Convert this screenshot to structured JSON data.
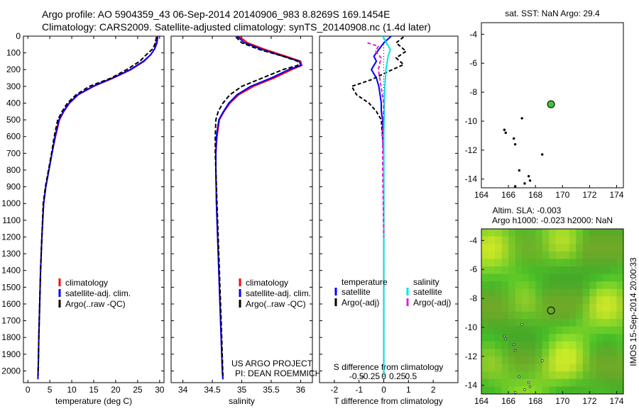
{
  "header": {
    "line1": "Argo profile: AO 5904359_43 06-Sep-2014 20140906_983 8.8269S 169.1454E",
    "line2": "Climatology: CARS2009. Satellite-adjusted climatology: synTS_20140908.nc (1.4d later)"
  },
  "colors": {
    "climatology": "#ff0000",
    "satellite": "#0000ff",
    "argo": "#000000",
    "satellite_salinity": "#00e5e5",
    "argo_salinity": "#e020e0",
    "marker": "#40c040",
    "sla_green": "#30c830"
  },
  "chart_data": [
    {
      "type": "line",
      "id": "temperature",
      "xlabel": "temperature (deg C)",
      "xlim": [
        -1,
        31
      ],
      "xticks": [
        0,
        5,
        10,
        15,
        20,
        25,
        30
      ],
      "ylim": [
        2070,
        0
      ],
      "yticks": [
        0,
        100,
        200,
        300,
        400,
        500,
        600,
        700,
        800,
        900,
        1000,
        1100,
        1200,
        1300,
        1400,
        1500,
        1600,
        1700,
        1800,
        1900,
        2000
      ],
      "legend": [
        "climatology",
        "satellite-adj. clim.",
        "Argo(..raw -QC)"
      ],
      "series": [
        {
          "name": "climatology",
          "color": "#ff0000",
          "x": [
            29.3,
            29.2,
            28.9,
            28.0,
            26.5,
            23.5,
            19.5,
            15.0,
            11.5,
            9.5,
            8.2,
            7.2,
            6.3,
            5.5,
            4.8,
            4.1,
            3.6,
            3.2,
            2.9,
            2.7,
            2.5,
            2.4,
            2.3
          ],
          "y": [
            0,
            40,
            75,
            110,
            150,
            200,
            250,
            300,
            350,
            400,
            450,
            500,
            600,
            700,
            800,
            900,
            1000,
            1200,
            1400,
            1600,
            1800,
            1950,
            2050
          ]
        },
        {
          "name": "satellite-adj. clim.",
          "color": "#0000ff",
          "x": [
            29.6,
            29.4,
            28.9,
            28.0,
            26.3,
            23.3,
            19.3,
            14.8,
            11.4,
            9.4,
            8.1,
            7.1,
            6.2,
            5.5,
            4.8,
            4.1,
            3.6,
            3.2,
            2.9,
            2.7,
            2.5,
            2.4,
            2.3
          ],
          "y": [
            0,
            40,
            75,
            110,
            150,
            200,
            250,
            300,
            350,
            400,
            450,
            500,
            600,
            700,
            800,
            900,
            1000,
            1200,
            1400,
            1600,
            1800,
            1950,
            2050
          ]
        },
        {
          "name": "Argo(..raw -QC)",
          "color": "#000000",
          "dashed": true,
          "x": [
            29.3,
            29.0,
            28.5,
            27.0,
            25.5,
            22.5,
            19.0,
            14.0,
            11.0,
            9.0,
            7.8,
            6.8,
            6.0,
            5.4,
            4.7,
            4.0,
            3.5,
            3.2,
            2.9,
            2.7,
            2.5,
            2.4,
            2.3
          ],
          "y": [
            5,
            40,
            75,
            110,
            150,
            200,
            250,
            300,
            350,
            400,
            450,
            500,
            600,
            700,
            800,
            900,
            1000,
            1200,
            1400,
            1600,
            1800,
            1950,
            2030
          ]
        }
      ]
    },
    {
      "type": "line",
      "id": "salinity",
      "xlabel": "salinity",
      "xlim": [
        33.8,
        36.2
      ],
      "xticks": [
        34,
        34.5,
        35,
        35.5,
        36
      ],
      "ylim": [
        2070,
        0
      ],
      "legend": [
        "climatology",
        "satellite-adj. clim.",
        "Argo(..raw -QC)"
      ],
      "annotation": [
        "US ARGO PROJECT",
        "PI: DEAN ROEMMICH"
      ],
      "series": [
        {
          "name": "climatology",
          "color": "#ff0000",
          "x": [
            34.95,
            35.1,
            35.4,
            35.75,
            36.0,
            36.02,
            35.85,
            35.55,
            35.2,
            34.95,
            34.8,
            34.7,
            34.62,
            34.58,
            34.56,
            34.56,
            34.57,
            34.59,
            34.62,
            34.65,
            34.67,
            34.68
          ],
          "y": [
            0,
            40,
            80,
            120,
            150,
            175,
            200,
            250,
            300,
            350,
            400,
            450,
            500,
            600,
            700,
            800,
            1000,
            1200,
            1500,
            1800,
            2000,
            2050
          ]
        },
        {
          "name": "satellite-adj. clim.",
          "color": "#0000ff",
          "x": [
            34.92,
            35.05,
            35.35,
            35.7,
            35.98,
            36.0,
            35.8,
            35.5,
            35.15,
            34.92,
            34.78,
            34.69,
            34.61,
            34.57,
            34.56,
            34.56,
            34.57,
            34.59,
            34.62,
            34.65,
            34.67,
            34.68
          ],
          "y": [
            0,
            40,
            80,
            120,
            150,
            175,
            200,
            250,
            300,
            350,
            400,
            450,
            500,
            600,
            700,
            800,
            1000,
            1200,
            1500,
            1800,
            2000,
            2050
          ]
        },
        {
          "name": "Argo(..raw -QC)",
          "color": "#000000",
          "dashed": true,
          "x": [
            34.9,
            35.0,
            35.3,
            35.7,
            35.95,
            35.95,
            35.7,
            35.35,
            35.0,
            34.8,
            34.68,
            34.6,
            34.56,
            34.55,
            34.55,
            34.56,
            34.58,
            34.6,
            34.63,
            34.66,
            34.68
          ],
          "y": [
            5,
            40,
            80,
            120,
            150,
            175,
            200,
            250,
            300,
            350,
            400,
            450,
            500,
            600,
            700,
            800,
            1000,
            1200,
            1500,
            1800,
            2030
          ]
        }
      ]
    },
    {
      "type": "line",
      "id": "difference",
      "xlabel": "T difference from climatology",
      "xlabel2": "S difference from climatology",
      "xlim": [
        -2.6,
        3.0
      ],
      "xticks": [
        -2,
        -1,
        0,
        1,
        2
      ],
      "xticks2": [
        -0.5,
        -0.25,
        0,
        0.25,
        0.5
      ],
      "ylim": [
        2070,
        0
      ],
      "legend_titles": [
        "temperature",
        "salinity"
      ],
      "legend": [
        "satellite",
        "Argo(-adj)",
        "satellite",
        "Argo(-adj)"
      ],
      "series": [
        {
          "name": "temperature satellite",
          "color": "#0000ff",
          "x": [
            0.3,
            0.0,
            -0.2,
            -0.4,
            -0.3,
            -0.5,
            -0.3,
            -0.2,
            -0.15,
            -0.1,
            -0.1,
            -0.05,
            -0.05,
            0.0,
            0.0,
            0.0,
            0.0,
            0.0
          ],
          "y": [
            0,
            40,
            80,
            120,
            150,
            200,
            250,
            300,
            350,
            400,
            450,
            500,
            600,
            700,
            1000,
            1400,
            1800,
            2030
          ]
        },
        {
          "name": "temperature Argo(-adj)",
          "color": "#000000",
          "dashed": true,
          "x": [
            0.8,
            0.5,
            0.9,
            0.5,
            0.8,
            0.2,
            -0.5,
            -1.3,
            -1.1,
            -0.6,
            -0.3,
            -0.1,
            -0.05,
            0.0,
            0.0,
            0.0,
            0.0
          ],
          "y": [
            5,
            40,
            90,
            130,
            170,
            210,
            260,
            300,
            350,
            400,
            450,
            500,
            600,
            700,
            1000,
            1500,
            2030
          ]
        },
        {
          "name": "salinity satellite",
          "color": "#00e5e5",
          "x": [
            -0.02,
            0.05,
            0.12,
            0.08,
            0.04,
            0.02,
            0.01,
            0.0,
            0.0,
            0.0,
            0.0,
            0.0
          ],
          "y": [
            0,
            40,
            80,
            120,
            200,
            300,
            400,
            600,
            900,
            1300,
            1700,
            2030
          ]
        },
        {
          "name": "salinity Argo(-adj)",
          "color": "#e020e0",
          "dashed": true,
          "x": [
            -0.3,
            -0.1,
            -0.15,
            -0.05,
            -0.1,
            -0.05,
            0.0,
            -0.02,
            -0.02,
            -0.01,
            0.0
          ],
          "y": [
            40,
            60,
            90,
            130,
            200,
            300,
            400,
            600,
            800,
            1000,
            1200
          ]
        }
      ]
    },
    {
      "type": "scatter",
      "id": "sst_map",
      "title": "sat. SST: NaN Argo: 29.4",
      "xlim": [
        164,
        174.5
      ],
      "xticks": [
        164,
        166,
        168,
        170,
        172,
        174
      ],
      "ylim": [
        -14.6,
        -3.2
      ],
      "yticks": [
        -4,
        -6,
        -8,
        -10,
        -12,
        -14
      ],
      "marker": {
        "x": 169.15,
        "y": -8.83
      }
    },
    {
      "type": "heatmap",
      "id": "sla_map",
      "title_line1": "Altim. SLA: -0.003",
      "title_line2": "Argo h1000: -0.023 h2000: NaN",
      "xlim": [
        164,
        174.5
      ],
      "xticks": [
        164,
        166,
        168,
        170,
        172,
        174
      ],
      "ylim": [
        -14.6,
        -3.2
      ],
      "yticks": [
        -4,
        -6,
        -8,
        -10,
        -12,
        -14
      ],
      "marker": {
        "x": 169.15,
        "y": -8.83
      },
      "side_label": "IMOS 15-Sep-2014 20:00:33"
    }
  ]
}
